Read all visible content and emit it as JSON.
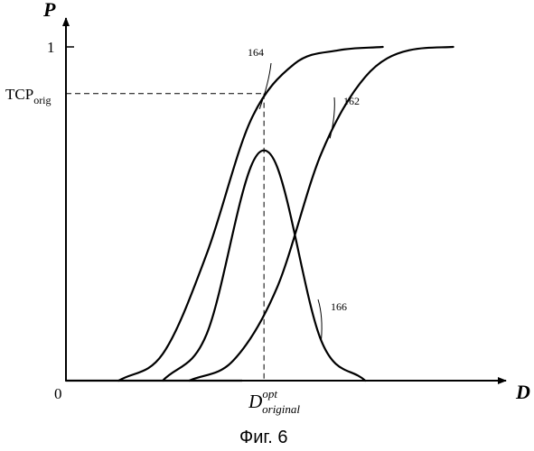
{
  "chart_data": {
    "type": "line",
    "title": "",
    "xlabel": "D",
    "ylabel": "P",
    "xlim": [
      0,
      1
    ],
    "ylim": [
      0,
      1
    ],
    "grid": false,
    "y_ticks": [
      {
        "value": 0,
        "label": "0"
      },
      {
        "value": 1,
        "label": "1"
      }
    ],
    "series": [
      {
        "name": "164",
        "kind": "sigmoid",
        "x": [
          0.12,
          0.22,
          0.32,
          0.42,
          0.52,
          0.62,
          0.72
        ],
        "values": [
          0.0,
          0.08,
          0.38,
          0.78,
          0.95,
          0.99,
          1.0
        ]
      },
      {
        "name": "162",
        "kind": "sigmoid",
        "x": [
          0.28,
          0.38,
          0.48,
          0.58,
          0.68,
          0.78,
          0.88
        ],
        "values": [
          0.0,
          0.06,
          0.28,
          0.68,
          0.91,
          0.99,
          1.0
        ]
      },
      {
        "name": "166",
        "kind": "bell",
        "x": [
          0.22,
          0.32,
          0.42,
          0.45,
          0.48,
          0.58,
          0.68
        ],
        "values": [
          0.0,
          0.14,
          0.64,
          0.69,
          0.64,
          0.12,
          0.0
        ]
      }
    ],
    "annotations": [
      {
        "id": "tcp",
        "label_main": "TCP",
        "label_sub": "orig",
        "value": 0.86
      },
      {
        "id": "dopt",
        "label_main": "D",
        "label_sup": "opt",
        "label_sub": "original",
        "value": 0.45
      }
    ]
  },
  "caption": "Фиг. 6"
}
